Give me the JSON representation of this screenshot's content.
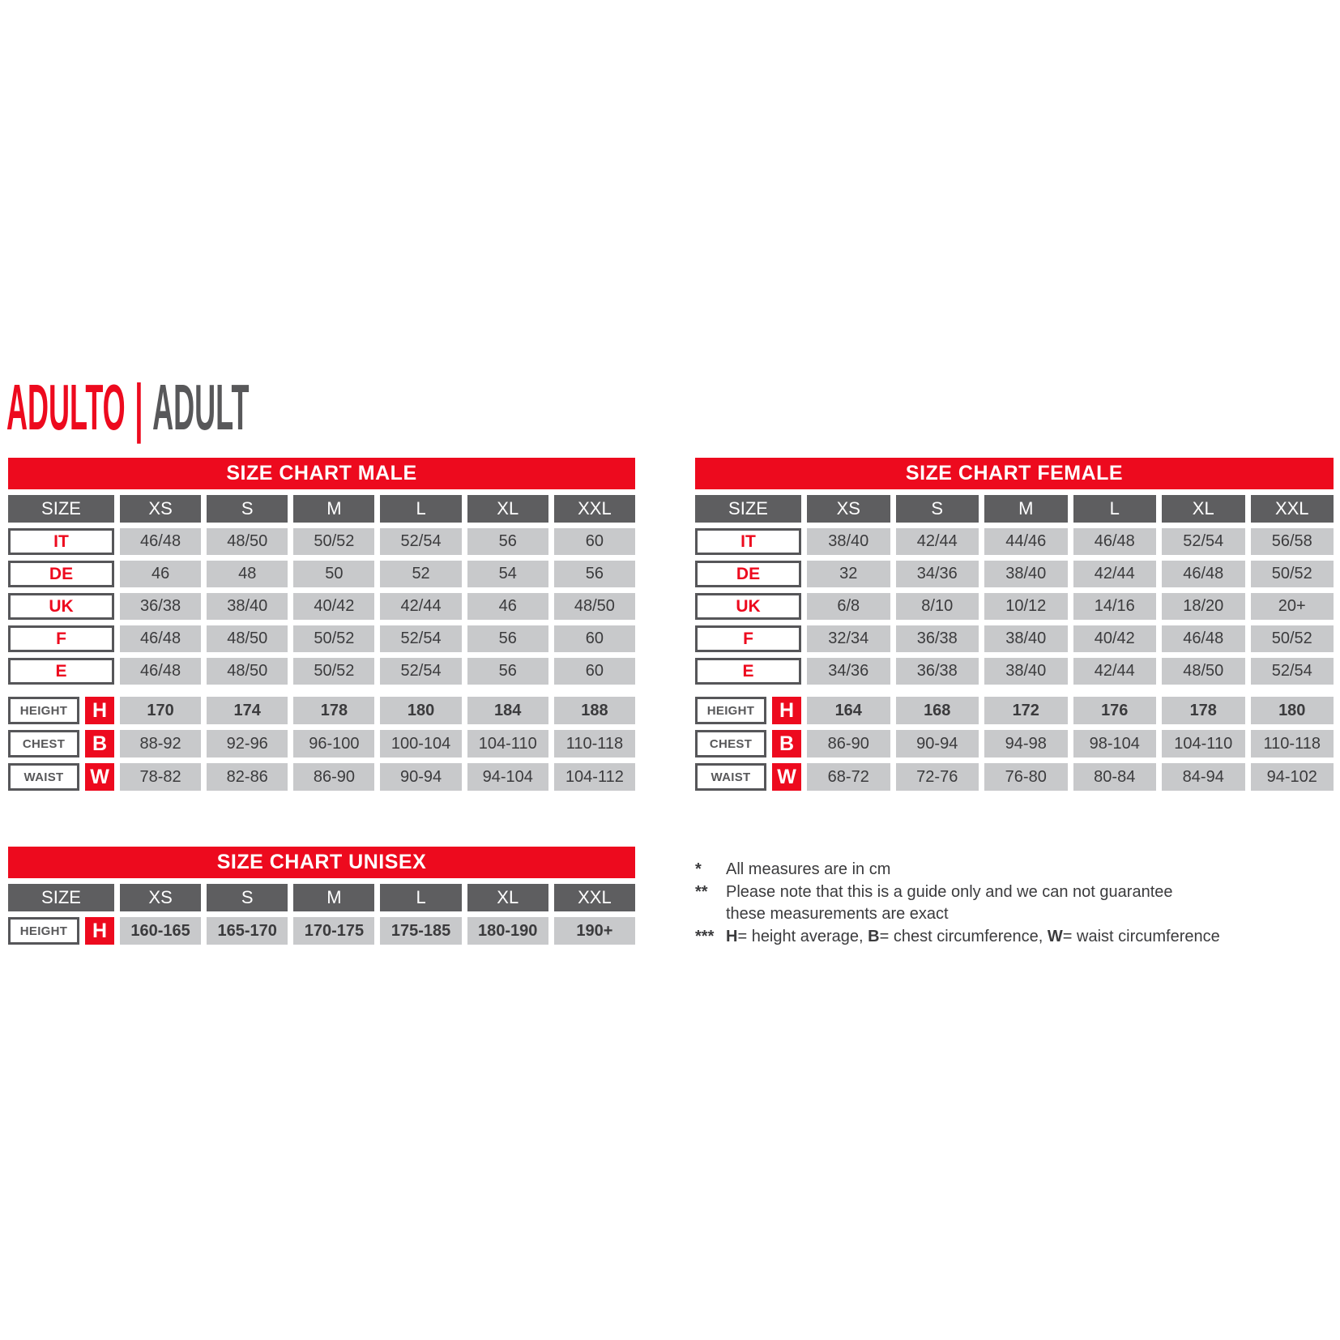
{
  "title": {
    "primary": "ADULTO",
    "separator": "|",
    "secondary": "ADULT"
  },
  "colors": {
    "accent_red": "#ED0A1E",
    "header_gray": "#5E5E60",
    "cell_gray": "#C8C9CB",
    "border_gray": "#565659",
    "text_dark": "#3B3B3D",
    "title_gray": "#58585A"
  },
  "tables": {
    "male": {
      "title": "SIZE CHART MALE",
      "size_label": "SIZE",
      "columns": [
        "XS",
        "S",
        "M",
        "L",
        "XL",
        "XXL"
      ],
      "size_rows": [
        {
          "label": "IT",
          "values": [
            "46/48",
            "48/50",
            "50/52",
            "52/54",
            "56",
            "60"
          ]
        },
        {
          "label": "DE",
          "values": [
            "46",
            "48",
            "50",
            "52",
            "54",
            "56"
          ]
        },
        {
          "label": "UK",
          "values": [
            "36/38",
            "38/40",
            "40/42",
            "42/44",
            "46",
            "48/50"
          ]
        },
        {
          "label": "F",
          "values": [
            "46/48",
            "48/50",
            "50/52",
            "52/54",
            "56",
            "60"
          ]
        },
        {
          "label": "E",
          "values": [
            "46/48",
            "48/50",
            "50/52",
            "52/54",
            "56",
            "60"
          ]
        }
      ],
      "measure_rows": [
        {
          "label": "HEIGHT",
          "letter": "H",
          "bold": true,
          "values": [
            "170",
            "174",
            "178",
            "180",
            "184",
            "188"
          ]
        },
        {
          "label": "CHEST",
          "letter": "B",
          "bold": false,
          "values": [
            "88-92",
            "92-96",
            "96-100",
            "100-104",
            "104-110",
            "110-118"
          ]
        },
        {
          "label": "WAIST",
          "letter": "W",
          "bold": false,
          "values": [
            "78-82",
            "82-86",
            "86-90",
            "90-94",
            "94-104",
            "104-112"
          ]
        }
      ]
    },
    "female": {
      "title": "SIZE CHART FEMALE",
      "size_label": "SIZE",
      "columns": [
        "XS",
        "S",
        "M",
        "L",
        "XL",
        "XXL"
      ],
      "size_rows": [
        {
          "label": "IT",
          "values": [
            "38/40",
            "42/44",
            "44/46",
            "46/48",
            "52/54",
            "56/58"
          ]
        },
        {
          "label": "DE",
          "values": [
            "32",
            "34/36",
            "38/40",
            "42/44",
            "46/48",
            "50/52"
          ]
        },
        {
          "label": "UK",
          "values": [
            "6/8",
            "8/10",
            "10/12",
            "14/16",
            "18/20",
            "20+"
          ]
        },
        {
          "label": "F",
          "values": [
            "32/34",
            "36/38",
            "38/40",
            "40/42",
            "46/48",
            "50/52"
          ]
        },
        {
          "label": "E",
          "values": [
            "34/36",
            "36/38",
            "38/40",
            "42/44",
            "48/50",
            "52/54"
          ]
        }
      ],
      "measure_rows": [
        {
          "label": "HEIGHT",
          "letter": "H",
          "bold": true,
          "values": [
            "164",
            "168",
            "172",
            "176",
            "178",
            "180"
          ]
        },
        {
          "label": "CHEST",
          "letter": "B",
          "bold": false,
          "values": [
            "86-90",
            "90-94",
            "94-98",
            "98-104",
            "104-110",
            "110-118"
          ]
        },
        {
          "label": "WAIST",
          "letter": "W",
          "bold": false,
          "values": [
            "68-72",
            "72-76",
            "76-80",
            "80-84",
            "84-94",
            "94-102"
          ]
        }
      ]
    },
    "unisex": {
      "title": "SIZE CHART UNISEX",
      "size_label": "SIZE",
      "columns": [
        "XS",
        "S",
        "M",
        "L",
        "XL",
        "XXL"
      ],
      "size_rows": [],
      "measure_rows": [
        {
          "label": "HEIGHT",
          "letter": "H",
          "bold": true,
          "values": [
            "160-165",
            "165-170",
            "170-175",
            "175-185",
            "180-190",
            "190+"
          ]
        }
      ]
    }
  },
  "notes": [
    {
      "marker": "*",
      "lines": [
        [
          {
            "t": "All measures are in cm"
          }
        ]
      ]
    },
    {
      "marker": "**",
      "lines": [
        [
          {
            "t": "Please note that this is a guide only and we can not guarantee"
          }
        ],
        [
          {
            "t": "these measurements are exact"
          }
        ]
      ]
    },
    {
      "marker": "***",
      "lines": [
        [
          {
            "t": "H",
            "b": 1
          },
          {
            "t": "= height average, "
          },
          {
            "t": "B",
            "b": 1
          },
          {
            "t": "= chest circumference, "
          },
          {
            "t": "W",
            "b": 1
          },
          {
            "t": "= waist circumference"
          }
        ]
      ]
    }
  ]
}
